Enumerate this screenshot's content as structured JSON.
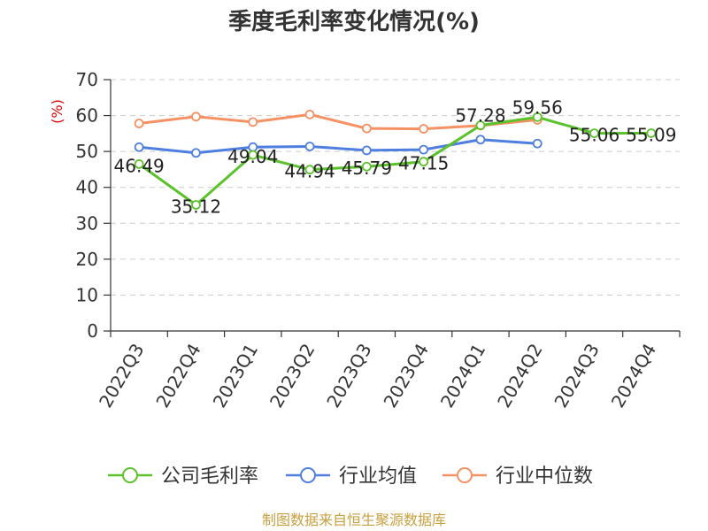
{
  "chart_data": {
    "type": "line",
    "title": "季度毛利率变化情况(%)",
    "ylabel": "(%)",
    "xlabel": "",
    "ylim": [
      0,
      70
    ],
    "yticks": [
      0,
      10,
      20,
      30,
      40,
      50,
      60,
      70
    ],
    "grid": true,
    "legend_position": "bottom",
    "categories": [
      "2022Q3",
      "2022Q4",
      "2023Q1",
      "2023Q2",
      "2023Q3",
      "2023Q4",
      "2024Q1",
      "2024Q2",
      "2024Q3",
      "2024Q4"
    ],
    "series": [
      {
        "name": "公司毛利率",
        "color": "#5cc22c",
        "values": [
          46.49,
          35.12,
          49.04,
          44.94,
          45.79,
          47.15,
          57.28,
          59.56,
          55.06,
          55.09
        ],
        "labels": [
          "46.49",
          "35.12",
          "49.04",
          "44.94",
          "45.79",
          "47.15",
          "57.28",
          "59.56",
          "55.06",
          "55.09"
        ]
      },
      {
        "name": "行业均值",
        "color": "#4e7ee0",
        "values": [
          51.2,
          49.6,
          51.2,
          51.4,
          50.3,
          50.5,
          53.3,
          52.2,
          null,
          null
        ]
      },
      {
        "name": "行业中位数",
        "color": "#f59162",
        "values": [
          57.8,
          59.7,
          58.2,
          60.3,
          56.4,
          56.3,
          57.2,
          58.8,
          null,
          null
        ]
      }
    ]
  },
  "source": "制图数据来自恒生聚源数据库"
}
